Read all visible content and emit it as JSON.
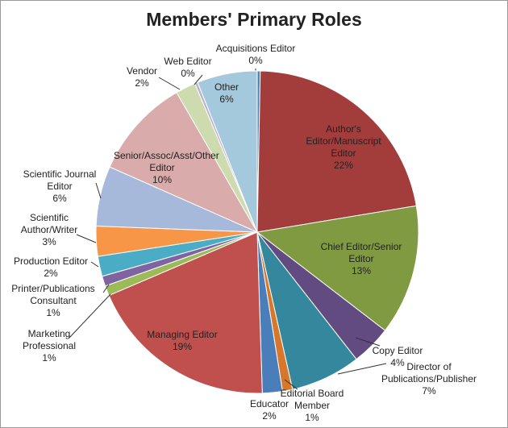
{
  "chart_data": {
    "type": "pie",
    "title": "Members' Primary Roles",
    "categories": [
      "Acquisitions Editor",
      "Author's Editor/Manuscript Editor",
      "Chief Editor/Senior Editor",
      "Copy Editor",
      "Director of Publications/Publisher",
      "Editorial Board Member",
      "Educator",
      "Managing Editor",
      "Marketing Professional",
      "Printer/Publications Consultant",
      "Production Editor",
      "Scientific Author/Writer",
      "Scientific Journal Editor",
      "Senior/Assoc/Asst/Other Editor",
      "Vendor",
      "Web Editor",
      "Other"
    ],
    "values": [
      0.3,
      22,
      13,
      4,
      7,
      1,
      2,
      19,
      1,
      1,
      2,
      3,
      6,
      10,
      2,
      0.3,
      6
    ],
    "value_labels": [
      "0%",
      "22%",
      "13%",
      "4%",
      "7%",
      "1%",
      "2%",
      "19%",
      "1%",
      "1%",
      "2%",
      "3%",
      "6%",
      "10%",
      "2%",
      "0%",
      "6%"
    ],
    "colors": [
      "#4f81bd",
      "#a33d3b",
      "#7f9a41",
      "#614b80",
      "#35879d",
      "#d7772b",
      "#4a7ebb",
      "#c0504d",
      "#9bbb59",
      "#8064a2",
      "#4bacc6",
      "#f79646",
      "#a7b9db",
      "#d9abaa",
      "#cddbae",
      "#bfb1d0",
      "#a5c9dc"
    ]
  }
}
